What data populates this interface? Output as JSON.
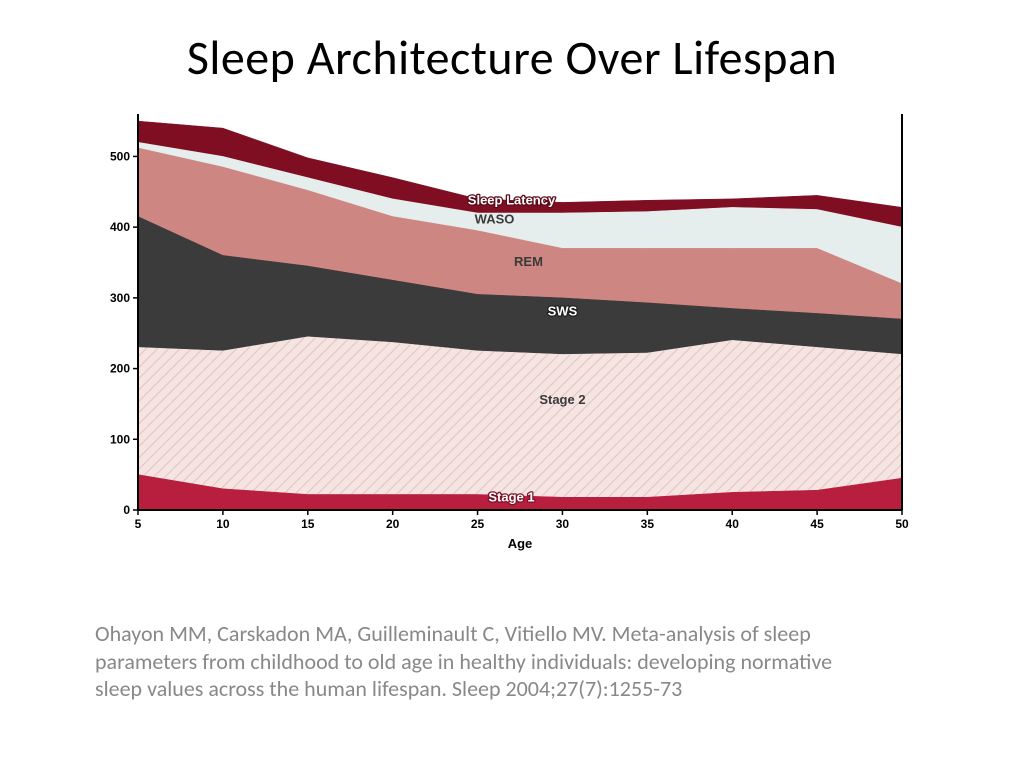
{
  "title": "Sleep Architecture Over Lifespan",
  "citation": "Ohayon MM, Carskadon MA, Guilleminault C, Vitiello MV. Meta-analysis of sleep parameters from childhood to old age in healthy individuals: developing normative sleep values across the human lifespan. Sleep 2004;27(7):1255-73",
  "chart": {
    "type": "area-stacked",
    "x_values": [
      5,
      10,
      15,
      20,
      25,
      30,
      35,
      40,
      45,
      50
    ],
    "x_label": "Age",
    "ylim": [
      0,
      560
    ],
    "ytick_step": 100,
    "yticks": [
      0,
      100,
      200,
      300,
      400,
      500
    ],
    "xlim": [
      5,
      50
    ],
    "background_color": "#ffffff",
    "axis_color": "#000000",
    "tick_font_size": 12,
    "xlabel_font_size": 13,
    "series": [
      {
        "name": "Stage 1",
        "label": "Stage 1",
        "color": "#b81e3d",
        "label_fill": "#ffffff",
        "label_stroke": "#7a1329",
        "values": [
          50,
          30,
          22,
          22,
          22,
          18,
          18,
          25,
          28,
          45
        ],
        "label_x": 27,
        "label_y": 12
      },
      {
        "name": "Stage 2",
        "label": "Stage 2",
        "color": "#f5e4e1",
        "hatched": true,
        "hatch_color": "#e0c4be",
        "label_fill": "#3a3a3a",
        "label_stroke": "none",
        "values": [
          230,
          225,
          245,
          237,
          225,
          220,
          222,
          240,
          230,
          220
        ],
        "label_x": 30,
        "label_y": 150
      },
      {
        "name": "SWS",
        "label": "SWS",
        "color": "#3b3b3c",
        "label_fill": "#ffffff",
        "label_stroke": "#202021",
        "values": [
          415,
          360,
          345,
          325,
          305,
          300,
          293,
          285,
          278,
          270
        ],
        "label_x": 30,
        "label_y": 275
      },
      {
        "name": "REM",
        "label": "REM",
        "color": "#cd8682",
        "label_fill": "#3a3a3a",
        "label_stroke": "none",
        "values": [
          512,
          485,
          452,
          415,
          395,
          370,
          370,
          370,
          370,
          320
        ],
        "label_x": 28,
        "label_y": 345
      },
      {
        "name": "WASO",
        "label": "WASO",
        "color": "#e6eded",
        "label_fill": "#3a3a3a",
        "label_stroke": "none",
        "values": [
          520,
          500,
          470,
          440,
          420,
          420,
          422,
          428,
          425,
          400
        ],
        "label_x": 26,
        "label_y": 405
      },
      {
        "name": "Sleep Latency",
        "label": "Sleep Latency",
        "color": "#7f0e22",
        "label_fill": "#ffffff",
        "label_stroke": "#5a0a18",
        "values": [
          550,
          540,
          498,
          470,
          440,
          435,
          438,
          440,
          445,
          428
        ],
        "label_x": 27,
        "label_y": 432
      }
    ]
  }
}
